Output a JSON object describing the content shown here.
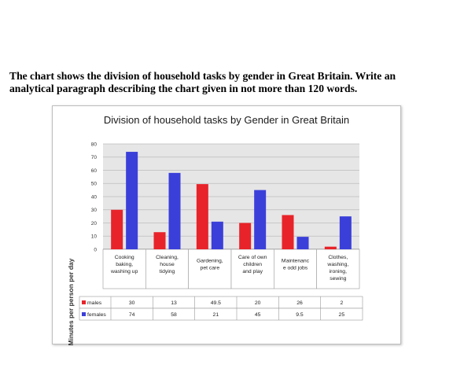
{
  "prompt": {
    "line1": "The chart shows the division of household tasks by gender in Great Britain. Write an",
    "line2": "analytical paragraph describing the chart given in not more than 120 words."
  },
  "chart_data": {
    "type": "bar",
    "title": "Division of household tasks by Gender in Great Britain",
    "xlabel": "",
    "ylabel": "Minutes per person per day",
    "ylim": [
      0,
      80
    ],
    "yticks": [
      0,
      10,
      20,
      30,
      40,
      50,
      60,
      70,
      80
    ],
    "grid": true,
    "legend": "data-table",
    "categories": [
      [
        "Cooking",
        "baking,",
        "washing up"
      ],
      [
        "Cleaning,",
        "house",
        "tidying"
      ],
      [
        "Gardening,",
        "pet care"
      ],
      [
        "Care of own",
        "children",
        "and play"
      ],
      [
        "Maintenanc",
        "e odd jobs"
      ],
      [
        "Clothes,",
        "washing,",
        "ironing,",
        "sewing"
      ]
    ],
    "series": [
      {
        "name": "males",
        "color": "#e8232a",
        "values": [
          30,
          13,
          49.5,
          20,
          26,
          2
        ]
      },
      {
        "name": "females",
        "color": "#3b3fd9",
        "values": [
          74,
          58,
          21,
          45,
          9.5,
          25
        ]
      }
    ],
    "plot_bg": "#e6e6e6"
  }
}
